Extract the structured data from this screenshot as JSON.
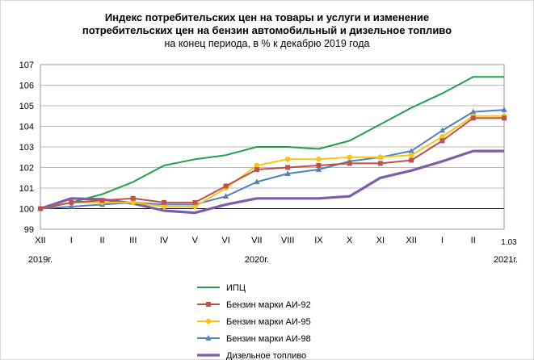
{
  "chart_data": {
    "type": "line",
    "title": "Индекс потребительских цен на товары и услуги и изменение",
    "title_line2": "потребительских цен на бензин автомобильный  и дизельное топливо",
    "subtitle": "на конец  периода, в % к декабрю 2019 года",
    "ylim": [
      99,
      107
    ],
    "yticks": [
      "99",
      "100",
      "101",
      "102",
      "103",
      "104",
      "105",
      "106",
      "107"
    ],
    "x_tick_labels": [
      "XII",
      "I",
      "II",
      "III",
      "IV",
      "V",
      "VI",
      "VII",
      "VIII",
      "IX",
      "X",
      "XI",
      "XII",
      "I",
      "II",
      "1.03"
    ],
    "year_labels": [
      "2019г.",
      "2020г.",
      "2021г."
    ],
    "grid": true,
    "legend_position": "bottom",
    "series": [
      {
        "name": "ИПЦ",
        "color": "#21a04a",
        "marker": "none",
        "values": [
          100.0,
          100.3,
          100.7,
          101.3,
          102.1,
          102.4,
          102.6,
          103.0,
          103.0,
          102.9,
          103.3,
          104.1,
          104.9,
          105.6,
          106.4,
          106.4
        ]
      },
      {
        "name": "Бензин марки АИ-92",
        "color": "#c0504d",
        "marker": "square",
        "values": [
          100.0,
          100.3,
          100.4,
          100.5,
          100.3,
          100.3,
          101.1,
          101.9,
          102.0,
          102.1,
          102.2,
          102.2,
          102.35,
          103.3,
          104.4,
          104.4
        ]
      },
      {
        "name": "Бензин марки АИ-95",
        "color": "#f5c518",
        "marker": "circle",
        "values": [
          100.0,
          100.3,
          100.3,
          100.3,
          100.1,
          100.1,
          101.0,
          102.1,
          102.4,
          102.4,
          102.5,
          102.5,
          102.6,
          103.5,
          104.5,
          104.5
        ]
      },
      {
        "name": "Бензин марки АИ-98",
        "color": "#4f81bd",
        "marker": "triangle",
        "values": [
          100.0,
          100.1,
          100.2,
          100.3,
          100.2,
          100.2,
          100.6,
          101.3,
          101.7,
          101.9,
          102.3,
          102.5,
          102.8,
          103.8,
          104.7,
          104.8
        ]
      },
      {
        "name": "Дизельное топливо",
        "color": "#7b5ea7",
        "marker": "none",
        "values": [
          100.0,
          100.5,
          100.45,
          100.25,
          99.9,
          99.8,
          100.2,
          100.5,
          100.5,
          100.5,
          100.6,
          101.5,
          101.85,
          102.3,
          102.8,
          102.8
        ]
      }
    ]
  }
}
